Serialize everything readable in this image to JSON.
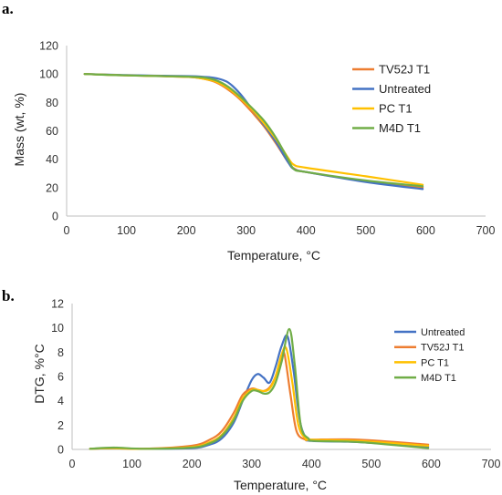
{
  "chart_data": [
    {
      "type": "line",
      "panel_label": "a.",
      "title": "",
      "xlabel": "Temperature, °C",
      "ylabel": "Mass (wt, %)",
      "xlim": [
        0,
        700
      ],
      "ylim": [
        0,
        120
      ],
      "x_ticks": [
        0,
        100,
        200,
        300,
        400,
        500,
        600,
        700
      ],
      "y_ticks": [
        0,
        20,
        40,
        60,
        80,
        100,
        120
      ],
      "grid": false,
      "legend_position": "right",
      "series": [
        {
          "name": "TV52J T1",
          "color": "#ED7D31",
          "x": [
            30,
            100,
            200,
            230,
            250,
            270,
            290,
            310,
            330,
            350,
            370,
            380,
            400,
            500,
            595
          ],
          "y": [
            100,
            99,
            98,
            96.5,
            94,
            89,
            82,
            73,
            63,
            51,
            38,
            33.5,
            31,
            24.5,
            20
          ]
        },
        {
          "name": "Untreated",
          "color": "#4472C4",
          "x": [
            30,
            100,
            200,
            230,
            250,
            270,
            290,
            310,
            330,
            350,
            370,
            380,
            400,
            500,
            595
          ],
          "y": [
            100,
            99.2,
            98.5,
            98,
            97,
            94,
            86,
            75,
            64,
            52,
            38,
            33,
            31,
            24,
            19
          ]
        },
        {
          "name": "PC T1",
          "color": "#FFC000",
          "x": [
            30,
            100,
            200,
            230,
            250,
            270,
            290,
            310,
            330,
            350,
            370,
            380,
            400,
            500,
            595
          ],
          "y": [
            100,
            99,
            98,
            96.5,
            94.5,
            90,
            83,
            75,
            65,
            54,
            41,
            36,
            34,
            28,
            22
          ]
        },
        {
          "name": "M4D T1",
          "color": "#70AD47",
          "x": [
            30,
            100,
            200,
            230,
            250,
            270,
            290,
            310,
            330,
            350,
            370,
            380,
            400,
            500,
            595
          ],
          "y": [
            100,
            99,
            98.2,
            97.5,
            95.5,
            91,
            84,
            76,
            67,
            55,
            40,
            33,
            31,
            25,
            21
          ]
        }
      ]
    },
    {
      "type": "line",
      "panel_label": "b.",
      "title": "",
      "xlabel": "Temperature, °C",
      "ylabel": "DTG, %°C",
      "xlim": [
        0,
        700
      ],
      "ylim": [
        0,
        12
      ],
      "x_ticks": [
        0,
        100,
        200,
        300,
        400,
        500,
        600,
        700
      ],
      "y_ticks": [
        0,
        2,
        4,
        6,
        8,
        10,
        12
      ],
      "grid": false,
      "legend_position": "right",
      "series": [
        {
          "name": "Untreated",
          "color": "#4472C4",
          "x": [
            30,
            70,
            120,
            200,
            230,
            250,
            270,
            285,
            300,
            310,
            320,
            330,
            340,
            350,
            360,
            370,
            380,
            390,
            400,
            480,
            595
          ],
          "y": [
            0.05,
            0.1,
            0.05,
            0.1,
            0.4,
            0.9,
            2.2,
            4.0,
            5.7,
            6.2,
            5.9,
            5.5,
            6.8,
            8.5,
            9.3,
            6.5,
            2.5,
            1.0,
            0.7,
            0.6,
            0.2
          ]
        },
        {
          "name": "TV52J T1",
          "color": "#ED7D31",
          "x": [
            30,
            70,
            120,
            200,
            230,
            250,
            270,
            285,
            300,
            310,
            320,
            330,
            340,
            350,
            355,
            365,
            375,
            390,
            400,
            480,
            595
          ],
          "y": [
            0.05,
            0.1,
            0.05,
            0.3,
            0.8,
            1.5,
            3.0,
            4.5,
            5.0,
            4.9,
            4.8,
            5.1,
            6.0,
            7.5,
            7.8,
            4.5,
            1.5,
            0.8,
            0.8,
            0.8,
            0.4
          ]
        },
        {
          "name": "PC T1",
          "color": "#FFC000",
          "x": [
            30,
            70,
            120,
            200,
            230,
            250,
            270,
            285,
            300,
            310,
            320,
            330,
            340,
            350,
            358,
            368,
            378,
            390,
            400,
            480,
            595
          ],
          "y": [
            0.05,
            0.1,
            0.05,
            0.2,
            0.6,
            1.2,
            2.6,
            4.2,
            4.9,
            4.9,
            4.8,
            5.0,
            6.0,
            7.8,
            8.3,
            5.5,
            2.0,
            0.9,
            0.8,
            0.7,
            0.3
          ]
        },
        {
          "name": "M4D T1",
          "color": "#70AD47",
          "x": [
            30,
            70,
            120,
            200,
            230,
            250,
            270,
            285,
            300,
            310,
            320,
            330,
            340,
            350,
            363,
            372,
            382,
            395,
            405,
            480,
            595
          ],
          "y": [
            0.05,
            0.15,
            0.05,
            0.15,
            0.5,
            1.1,
            2.4,
            4.0,
            4.8,
            4.8,
            4.6,
            4.7,
            5.5,
            7.2,
            9.9,
            7.0,
            2.0,
            0.9,
            0.7,
            0.6,
            0.1
          ]
        }
      ]
    }
  ]
}
